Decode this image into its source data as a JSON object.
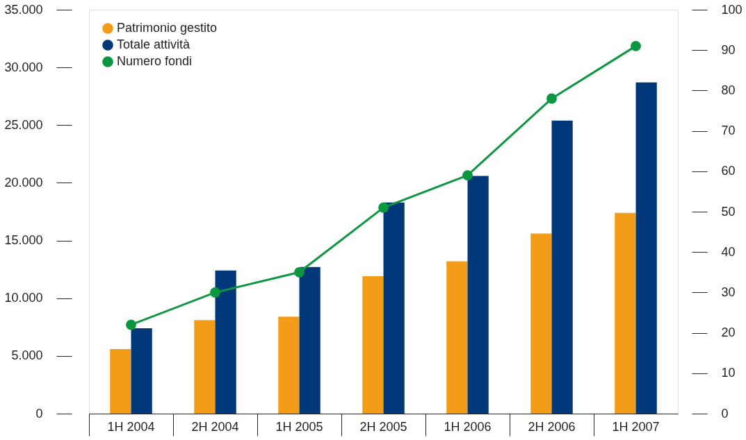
{
  "chart_data": {
    "type": "bar",
    "categories": [
      "1H 2004",
      "2H 2004",
      "1H 2005",
      "2H 2005",
      "1H 2006",
      "2H 2006",
      "1H 2007"
    ],
    "series": [
      {
        "name": "Patrimonio gestito",
        "color": "#f39c17",
        "values": [
          5600,
          8100,
          8400,
          11900,
          13200,
          15600,
          17400
        ]
      },
      {
        "name": "Totale attività",
        "color": "#00387a",
        "values": [
          7400,
          12400,
          12700,
          18300,
          20600,
          25400,
          28700
        ]
      },
      {
        "name": "Numero fondi",
        "type": "line",
        "axis": "y2",
        "color": "#0b9640",
        "marker": "circle",
        "line_style": "solid",
        "values": [
          22,
          30,
          35,
          51,
          59,
          78,
          91
        ]
      }
    ],
    "ylim": [
      0,
      35000
    ],
    "yticks": [
      {
        "value": 0,
        "label": "0"
      },
      {
        "value": 5000,
        "label": "5.000"
      },
      {
        "value": 10000,
        "label": "10.000"
      },
      {
        "value": 15000,
        "label": "15.000"
      },
      {
        "value": 20000,
        "label": "20.000"
      },
      {
        "value": 25000,
        "label": "25.000"
      },
      {
        "value": 30000,
        "label": "30.000"
      },
      {
        "value": 35000,
        "label": "35.000"
      }
    ],
    "y2lim": [
      0,
      100
    ],
    "y2ticks": [
      0,
      10,
      20,
      30,
      40,
      50,
      60,
      70,
      80,
      90,
      100
    ],
    "grid": false,
    "legend": "top left"
  }
}
